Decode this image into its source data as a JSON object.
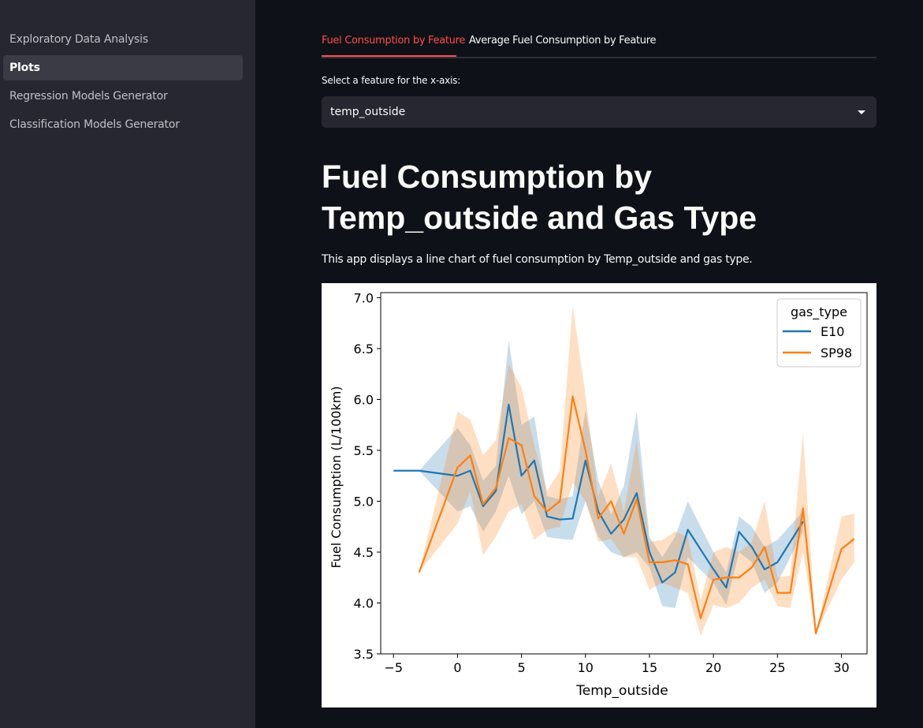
{
  "sidebar": {
    "items": [
      {
        "label": "Exploratory Data Analysis"
      },
      {
        "label": "Plots"
      },
      {
        "label": "Regression Models Generator"
      },
      {
        "label": "Classification Models Generator"
      }
    ]
  },
  "tabs": [
    {
      "label": "Fuel Consumption by Feature"
    },
    {
      "label": "Average Fuel Consumption by Feature"
    }
  ],
  "select": {
    "label": "Select a feature for the x-axis:",
    "value": "temp_outside"
  },
  "page": {
    "title": "Fuel Consumption by Temp_outside and Gas Type",
    "description": "This app displays a line chart of fuel consumption by Temp_outside and gas type."
  },
  "colors": {
    "accent": "#ff4b4b",
    "e10": "#1f77b4",
    "sp98": "#ff7f0e"
  },
  "chart_data": {
    "type": "line",
    "xlabel": "Temp_outside",
    "ylabel": "Fuel Consumption (L/100km)",
    "xlim": [
      -6,
      32
    ],
    "ylim": [
      3.5,
      7.05
    ],
    "xticks": [
      -5,
      0,
      5,
      10,
      15,
      20,
      25,
      30
    ],
    "xtick_labels": [
      "−5",
      "0",
      "5",
      "10",
      "15",
      "20",
      "25",
      "30"
    ],
    "yticks": [
      3.5,
      4.0,
      4.5,
      5.0,
      5.5,
      6.0,
      6.5,
      7.0
    ],
    "ytick_labels": [
      "3.5",
      "4.0",
      "4.5",
      "5.0",
      "5.5",
      "6.0",
      "6.5",
      "7.0"
    ],
    "legend": {
      "title": "gas_type",
      "position": "top-right"
    },
    "series": [
      {
        "name": "E10",
        "x": [
          -5,
          -3,
          0,
          1,
          2,
          3,
          4,
          5,
          6,
          7,
          8,
          9,
          10,
          11,
          12,
          13,
          14,
          15,
          16,
          17,
          18,
          20,
          21,
          22,
          23,
          24,
          25,
          27
        ],
        "y": [
          5.3,
          5.3,
          5.25,
          5.3,
          4.95,
          5.1,
          5.95,
          5.25,
          5.4,
          4.85,
          4.82,
          4.83,
          5.4,
          4.9,
          4.68,
          4.82,
          5.08,
          4.5,
          4.2,
          4.3,
          4.72,
          4.33,
          4.15,
          4.7,
          4.55,
          4.33,
          4.4,
          4.8
        ],
        "ci_low": [
          5.3,
          5.3,
          4.9,
          4.95,
          4.7,
          4.9,
          5.25,
          4.87,
          5.0,
          4.65,
          4.63,
          4.62,
          5.0,
          4.65,
          4.5,
          4.45,
          4.5,
          4.35,
          3.97,
          3.95,
          4.45,
          4.2,
          3.98,
          4.5,
          4.4,
          4.1,
          4.2,
          4.7
        ],
        "ci_high": [
          5.3,
          5.3,
          5.72,
          5.55,
          5.2,
          5.35,
          6.58,
          5.75,
          5.83,
          5.05,
          5.02,
          5.05,
          5.9,
          5.2,
          4.87,
          5.15,
          5.88,
          4.65,
          4.45,
          4.65,
          5.0,
          4.5,
          4.3,
          4.85,
          4.75,
          4.55,
          4.62,
          4.9
        ]
      },
      {
        "name": "SP98",
        "x": [
          -3,
          0,
          1,
          2,
          3,
          4,
          5,
          6,
          7,
          8,
          9,
          10,
          11,
          12,
          13,
          14,
          15,
          16,
          17,
          18,
          19,
          20,
          21,
          22,
          23,
          24,
          25,
          26,
          27,
          28,
          30,
          31
        ],
        "y": [
          4.3,
          5.33,
          5.45,
          4.97,
          5.13,
          5.62,
          5.55,
          5.05,
          4.9,
          5.0,
          6.03,
          5.5,
          4.83,
          5.0,
          4.68,
          5.02,
          4.4,
          4.4,
          4.42,
          4.38,
          3.85,
          4.23,
          4.25,
          4.25,
          4.35,
          4.55,
          4.1,
          4.1,
          4.93,
          3.7,
          4.53,
          4.63
        ],
        "ci_low": [
          4.3,
          4.78,
          5.1,
          4.47,
          4.65,
          4.9,
          4.97,
          4.62,
          4.72,
          4.75,
          5.18,
          5.0,
          4.6,
          4.63,
          4.45,
          4.45,
          4.13,
          4.2,
          4.15,
          4.1,
          3.68,
          3.98,
          3.95,
          4.0,
          4.15,
          4.23,
          3.97,
          3.95,
          4.5,
          3.7,
          4.23,
          4.4
        ],
        "ci_high": [
          4.3,
          5.88,
          5.8,
          5.45,
          5.6,
          6.35,
          6.12,
          5.55,
          5.1,
          5.3,
          6.92,
          6.05,
          5.05,
          5.37,
          4.9,
          5.6,
          4.6,
          4.62,
          4.7,
          4.65,
          4.03,
          4.5,
          4.55,
          4.5,
          4.6,
          5.0,
          4.25,
          4.27,
          5.67,
          3.7,
          4.85,
          4.88
        ]
      }
    ]
  }
}
